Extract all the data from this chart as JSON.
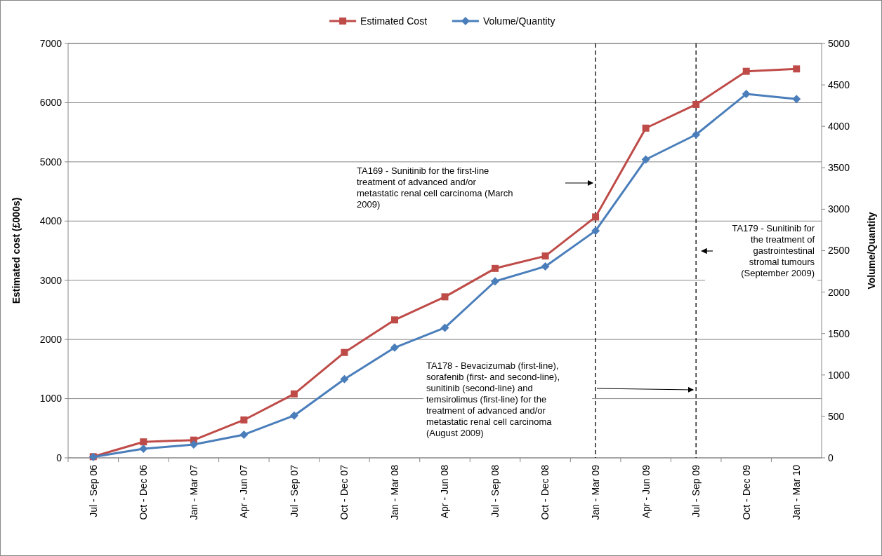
{
  "chart_data": {
    "type": "line",
    "categories": [
      "Jul - Sep 06",
      "Oct - Dec 06",
      "Jan - Mar 07",
      "Apr - Jun 07",
      "Jul - Sep 07",
      "Oct - Dec 07",
      "Jan - Mar 08",
      "Apr - Jun 08",
      "Jul - Sep 08",
      "Oct - Dec 08",
      "Jan - Mar 09",
      "Apr - Jun 09",
      "Jul - Sep 09",
      "Oct - Dec 09",
      "Jan - Mar 10"
    ],
    "series": [
      {
        "name": "Estimated Cost",
        "color": "#be4b48",
        "marker": "square",
        "values": [
          20,
          270,
          300,
          640,
          1080,
          1780,
          2330,
          2720,
          3200,
          3410,
          4070,
          5570,
          5970,
          6530,
          6570
        ]
      },
      {
        "name": "Volume/Quantity",
        "color": "#4a7ebb",
        "marker": "diamond",
        "axis": "y2",
        "values": [
          10,
          110,
          160,
          280,
          510,
          950,
          1330,
          1570,
          2130,
          2310,
          2740,
          3600,
          3900,
          4390,
          4330
        ]
      }
    ],
    "ylabel": "Estimated cost  (£000s)",
    "y2label": "Volume/Quantity",
    "ylim": [
      0,
      7000
    ],
    "yticks": [
      0,
      1000,
      2000,
      3000,
      4000,
      5000,
      6000,
      7000
    ],
    "y2lim": [
      0,
      5000
    ],
    "y2ticks": [
      0,
      500,
      1000,
      1500,
      2000,
      2500,
      3000,
      3500,
      4000,
      4500,
      5000
    ],
    "grid": "y",
    "legend": "top",
    "line_style": "solid",
    "ref_lines": [
      {
        "axis": "x",
        "value": "Jan - Mar 09",
        "line_style": "dashed",
        "color": "#000000"
      },
      {
        "axis": "x",
        "value": "Jul - Sep 09",
        "line_style": "dashed",
        "color": "#000000"
      }
    ],
    "annotations": [
      "TA169 - Sunitinib for the first-line treatment of advanced and/or metastatic renal cell carcinoma (March 2009)",
      "TA179 - Sunitinib for the treatment of gastrointestinal stromal tumours (September 2009)",
      "TA178 - Bevacizumab (first-line), sorafenib (first- and second-line), sunitinib (second-line) and temsirolimus (first-line) for the treatment of advanced and/or metastatic renal cell carcinoma (August 2009)"
    ]
  }
}
